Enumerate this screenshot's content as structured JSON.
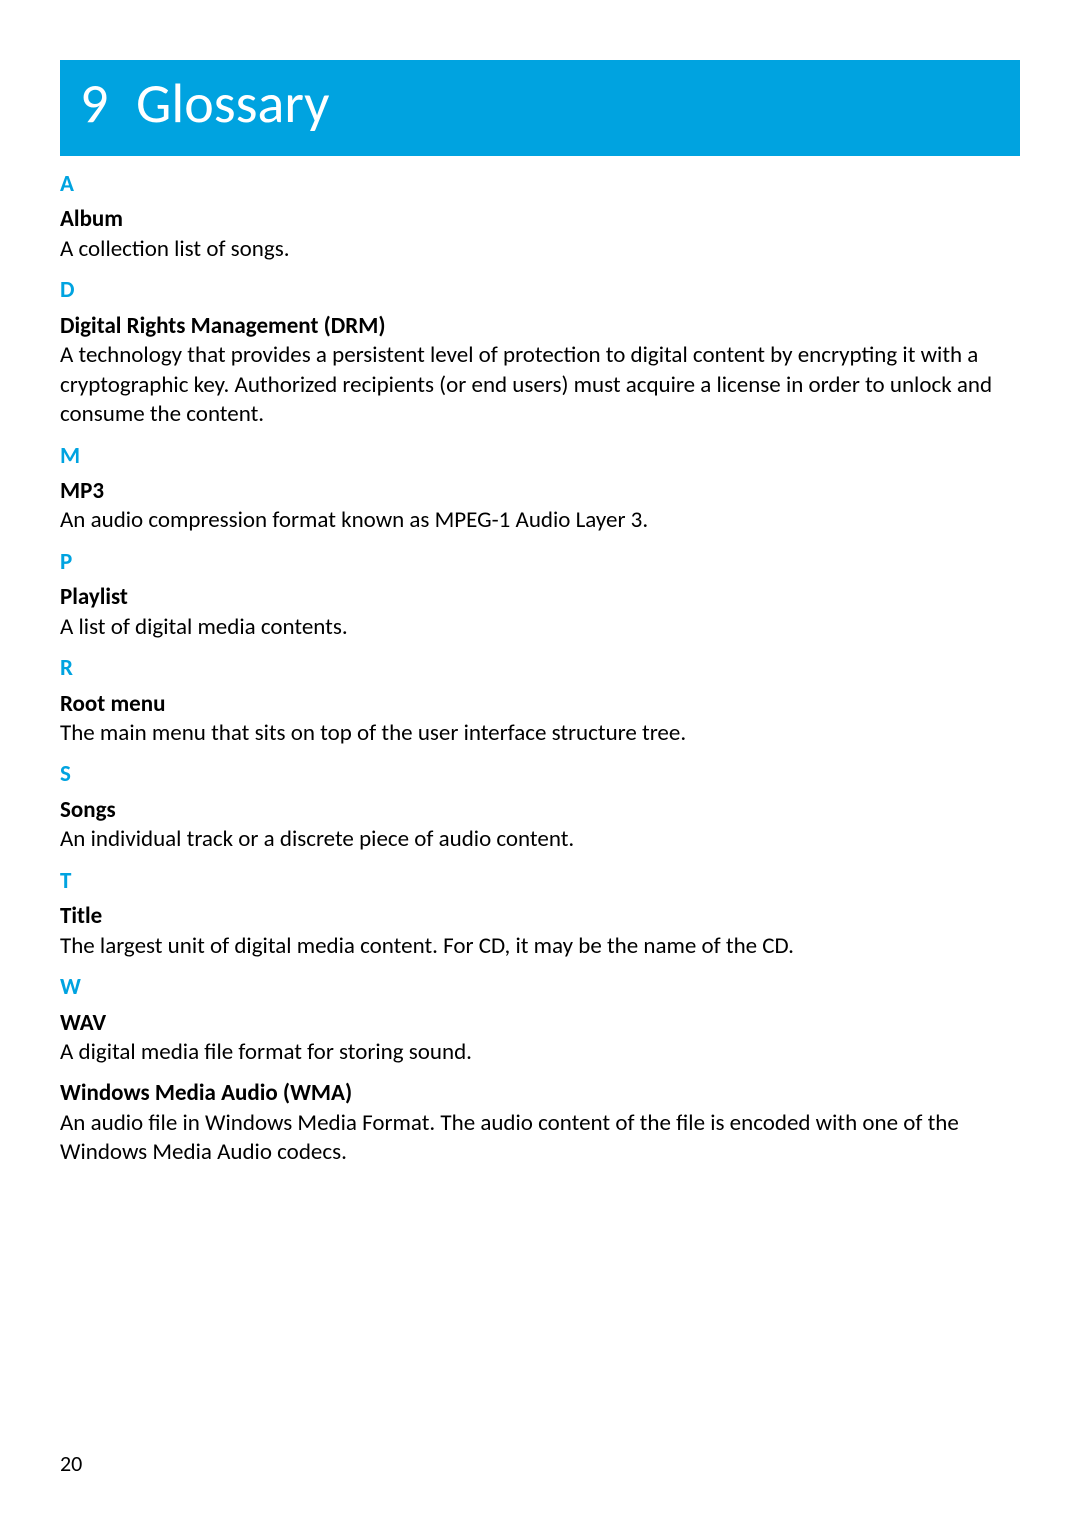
{
  "chapter": {
    "number": "9",
    "title": "Glossary",
    "banner_bg": "#00a3e0",
    "banner_text_color": "#ffffff",
    "title_fontsize_pt": 42
  },
  "colors": {
    "accent": "#00a3e0",
    "body_text": "#000000",
    "background": "#ffffff"
  },
  "typography": {
    "body_fontsize_pt": 17,
    "letter_fontsize_pt": 17,
    "letter_weight": "bold",
    "term_weight": "bold",
    "font_family": "Gill Sans"
  },
  "sections": [
    {
      "letter": "A",
      "entries": [
        {
          "term": "Album",
          "definition": "A collection list of songs."
        }
      ]
    },
    {
      "letter": "D",
      "entries": [
        {
          "term": "Digital Rights Management (DRM)",
          "definition": "A technology that provides a persistent level of protection to digital content by encrypting it with a cryptographic key. Authorized recipients (or end users) must acquire a license in order to unlock and consume the content."
        }
      ]
    },
    {
      "letter": "M",
      "entries": [
        {
          "term": "MP3",
          "definition": "An audio compression format known as MPEG-1 Audio Layer 3."
        }
      ]
    },
    {
      "letter": "P",
      "entries": [
        {
          "term": "Playlist",
          "definition": "A list of digital media contents."
        }
      ]
    },
    {
      "letter": "R",
      "entries": [
        {
          "term": "Root menu",
          "definition": "The main menu that sits on top of the user interface structure tree."
        }
      ]
    },
    {
      "letter": "S",
      "entries": [
        {
          "term": "Songs",
          "definition": "An individual track or a discrete piece of audio content."
        }
      ]
    },
    {
      "letter": "T",
      "entries": [
        {
          "term": "Title",
          "definition": "The largest unit of digital media content. For CD, it may be the name of the CD."
        }
      ]
    },
    {
      "letter": "W",
      "entries": [
        {
          "term": "WAV",
          "definition": "A digital media file format for storing sound."
        },
        {
          "term": "Windows Media Audio (WMA)",
          "definition": "An audio file in Windows Media Format. The audio content of the file is encoded with one of the Windows Media Audio codecs."
        }
      ]
    }
  ],
  "page_number": "20"
}
